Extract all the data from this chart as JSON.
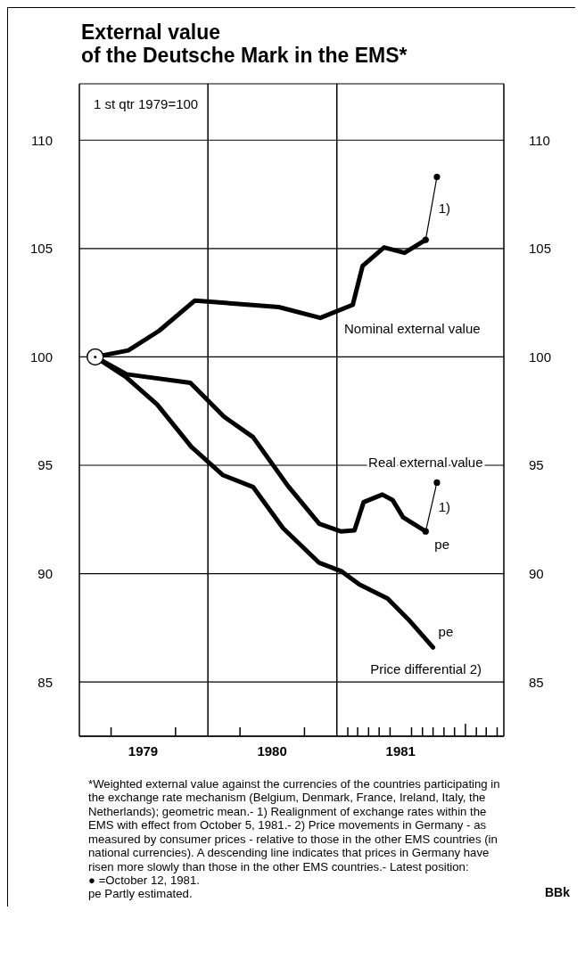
{
  "chart_data": {
    "type": "line",
    "title": "External value\nof the Deutsche Mark in the EMS*",
    "x": [
      "1979-02-15",
      "1979-05-20",
      "1979-08-15",
      "1979-11-25",
      "1980-07-20",
      "1980-11-15",
      "1981-02-15",
      "1981-03-15",
      "1981-05-15",
      "1981-07-12",
      "1981-09-10"
    ],
    "series": [
      {
        "name": "Nominal external value",
        "color": "#000000",
        "values": [
          100,
          100.3,
          101.2,
          102.6,
          102.3,
          101.8,
          102.4,
          104.2,
          105.05,
          104.8,
          105.4
        ]
      },
      {
        "name": "Real external value",
        "color": "#000000",
        "x": [
          "1979-02-15",
          "1979-05-15",
          "1979-11-12",
          "1980-02-15",
          "1980-05-08",
          "1980-08-15",
          "1980-11-12",
          "1981-01-12",
          "1981-02-20",
          "1981-03-18",
          "1981-05-10",
          "1981-06-08",
          "1981-07-08",
          "1981-09-10"
        ],
        "values": [
          100,
          99.2,
          98.8,
          97.25,
          96.3,
          94.05,
          92.3,
          91.95,
          92,
          93.3,
          93.65,
          93.4,
          92.6,
          91.95
        ]
      },
      {
        "name": "Price differential 2)",
        "color": "#000000",
        "x": [
          "1979-02-15",
          "1979-05-15",
          "1979-08-10",
          "1979-11-15",
          "1980-02-12",
          "1980-05-08",
          "1980-08-01",
          "1980-11-12",
          "1981-01-15",
          "1981-03-06",
          "1981-05-25",
          "1981-07-28",
          "1981-10-01"
        ],
        "values": [
          100,
          99.05,
          97.8,
          95.85,
          94.55,
          94,
          92.1,
          90.5,
          90.1,
          89.5,
          88.85,
          87.8,
          86.6
        ]
      },
      {
        "type": "line",
        "color": "#000000",
        "marker": "circle",
        "x": [
          "1981-09-10",
          "1981-10-12"
        ],
        "values": [
          105.4,
          108.3
        ]
      },
      {
        "type": "line",
        "color": "#000000",
        "marker": "circle",
        "x": [
          "1981-09-10",
          "1981-10-12"
        ],
        "values": [
          91.95,
          94.2
        ]
      }
    ],
    "xlim": [
      "1979-01-01",
      "1982-04-20"
    ],
    "xticks": [
      {
        "value": "1979-04-01",
        "label": null
      },
      {
        "value": "1979-07-01",
        "label": "1979"
      },
      {
        "value": "1979-10-01",
        "label": null
      },
      {
        "value": "1980-04-01",
        "label": null
      },
      {
        "value": "1980-07-01",
        "label": "1980"
      },
      {
        "value": "1980-10-01",
        "label": null
      },
      {
        "value": "1981-02-01",
        "label": null
      },
      {
        "value": "1981-03-01",
        "label": null
      },
      {
        "value": "1981-04-01",
        "label": null
      },
      {
        "value": "1981-05-01",
        "label": null
      },
      {
        "value": "1981-06-01",
        "label": null
      },
      {
        "value": "1981-07-01",
        "label": "1981"
      },
      {
        "value": "1981-08-01",
        "label": null
      },
      {
        "value": "1981-09-01",
        "label": null
      },
      {
        "value": "1981-10-01",
        "label": null
      },
      {
        "value": "1981-11-01",
        "label": null
      },
      {
        "value": "1981-12-01",
        "label": null
      },
      {
        "value": "1982-01-01",
        "label": null
      },
      {
        "value": "1982-02-01",
        "label": null
      },
      {
        "value": "1982-03-01",
        "label": null
      },
      {
        "value": "1982-04-01",
        "label": null
      }
    ],
    "ylim": [
      82.5,
      112.6
    ],
    "yticks": [
      85,
      90,
      95,
      100,
      105,
      110
    ],
    "y2lim": [
      82.5,
      112.6
    ],
    "y2ticks": [
      85,
      90,
      95,
      100,
      105,
      110
    ],
    "ref_lines": [
      {
        "axis": "x",
        "value": "1980-01-01"
      },
      {
        "axis": "x",
        "value": "1981-01-01"
      }
    ],
    "grid": "y",
    "legend": false,
    "marker": "none",
    "line_style": "solid",
    "annotations": [
      "1 st qtr 1979=100",
      "*Weighted external value against the currencies of the countries participating in the exchange rate mechanism (Belgium, Denmark, France, Ireland, Italy, the Netherlands); geometric mean.- 1) Realignment of exchange rates within the EMS with effect from October 5, 1981.- 2) Price movements in Germany - as measured by consumer prices - relative to those in the other EMS countries (in national currencies). A descending line indicates that prices in Germany have risen more slowly than those in the other EMS countries.- Latest position:\n● =October 12, 1981.\npe Partly estimated.",
      "BBk",
      {
        "text": "1)",
        "x": "1981-09-26",
        "y": 106.85
      },
      {
        "text": "1)",
        "x": "1981-09-26",
        "y": 93.075
      },
      {
        "text": "pe",
        "x": "1981-09-10",
        "y": 91.95
      },
      {
        "text": "pe",
        "x": "1981-10-01",
        "y": 86.6
      }
    ]
  }
}
